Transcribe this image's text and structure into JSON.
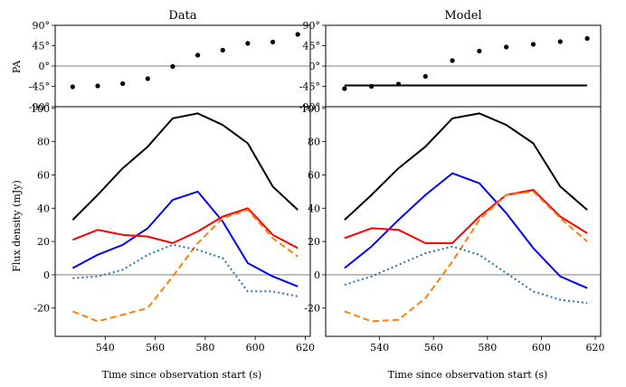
{
  "figure": {
    "xlabel": "Time since observation start (s)",
    "pa_ylabel": "PA",
    "flux_ylabel": "Flux density (mJy)"
  },
  "chart_data": [
    {
      "type": "scatter",
      "title": "Data",
      "panel": "pa",
      "x": [
        527,
        537,
        547,
        557,
        567,
        577,
        587,
        597,
        607,
        617
      ],
      "values": [
        -46,
        -44,
        -39,
        -28,
        -1,
        24,
        35,
        50,
        53,
        70
      ],
      "ylim": [
        -90,
        90
      ],
      "yticks": [
        90,
        45,
        0,
        -45,
        -90
      ],
      "ytick_labels": [
        "90°",
        "45°",
        "0°",
        "-45°",
        "-90°"
      ],
      "hline": 0
    },
    {
      "type": "line",
      "title": "Data",
      "panel": "flux",
      "x": [
        527,
        537,
        547,
        557,
        567,
        577,
        587,
        597,
        607,
        617
      ],
      "xlim": [
        520,
        622
      ],
      "xticks": [
        540,
        560,
        580,
        600,
        620
      ],
      "ylim": [
        -37,
        101
      ],
      "yticks": [
        100,
        80,
        60,
        40,
        20,
        0,
        -20
      ],
      "hline": 0,
      "series": [
        {
          "name": "black",
          "color": "#000000",
          "style": "solid",
          "values": [
            33,
            48,
            64,
            77,
            94,
            97,
            90,
            79,
            53,
            39
          ]
        },
        {
          "name": "blue",
          "color": "#0000ff",
          "style": "solid",
          "values": [
            4,
            12,
            18,
            28,
            45,
            50,
            32,
            7,
            -1,
            -7
          ]
        },
        {
          "name": "red",
          "color": "#ff0000",
          "style": "solid",
          "values": [
            21,
            27,
            24,
            23,
            19,
            26,
            35,
            40,
            24,
            16
          ]
        },
        {
          "name": "orange",
          "color": "#ff7f0e",
          "style": "dashed",
          "values": [
            -22,
            -28,
            -24,
            -20,
            -1,
            19,
            34,
            39,
            22,
            11
          ]
        },
        {
          "name": "teal",
          "color": "#1f77b4",
          "style": "dotted",
          "values": [
            -2,
            -1,
            3,
            12,
            18,
            15,
            10,
            -10,
            -10,
            -13
          ]
        }
      ]
    },
    {
      "type": "scatter",
      "title": "Model",
      "panel": "pa",
      "x": [
        527,
        537,
        547,
        557,
        567,
        577,
        587,
        597,
        607,
        617
      ],
      "values": [
        -50,
        -45,
        -40,
        -23,
        12,
        33,
        42,
        48,
        54,
        61
      ],
      "ylim": [
        -90,
        90
      ],
      "yticks": [
        90,
        45,
        0,
        -45,
        -90
      ],
      "ytick_labels": [
        "90°",
        "45°",
        "0°",
        "-45°",
        "-90°"
      ],
      "hline": 0,
      "fit_line": {
        "x": [
          527,
          617
        ],
        "values": [
          -43,
          -43
        ]
      }
    },
    {
      "type": "line",
      "title": "Model",
      "panel": "flux",
      "x": [
        527,
        537,
        547,
        557,
        567,
        577,
        587,
        597,
        607,
        617
      ],
      "xlim": [
        520,
        622
      ],
      "xticks": [
        540,
        560,
        580,
        600,
        620
      ],
      "ylim": [
        -37,
        101
      ],
      "yticks": [
        100,
        80,
        60,
        40,
        20,
        0,
        -20
      ],
      "hline": 0,
      "series": [
        {
          "name": "black",
          "color": "#000000",
          "style": "solid",
          "values": [
            33,
            48,
            64,
            77,
            94,
            97,
            90,
            79,
            53,
            39
          ]
        },
        {
          "name": "blue",
          "color": "#0000ff",
          "style": "solid",
          "values": [
            4,
            17,
            33,
            48,
            61,
            55,
            37,
            16,
            -1,
            -8
          ]
        },
        {
          "name": "red",
          "color": "#ff0000",
          "style": "solid",
          "values": [
            22,
            28,
            27,
            19,
            19,
            35,
            48,
            51,
            35,
            25
          ]
        },
        {
          "name": "orange",
          "color": "#ff7f0e",
          "style": "dashed",
          "values": [
            -22,
            -28,
            -27,
            -14,
            8,
            33,
            48,
            50,
            34,
            20
          ]
        },
        {
          "name": "teal",
          "color": "#1f77b4",
          "style": "dotted",
          "values": [
            -6,
            -1,
            6,
            13,
            17,
            12,
            1,
            -10,
            -15,
            -17
          ]
        }
      ]
    }
  ]
}
